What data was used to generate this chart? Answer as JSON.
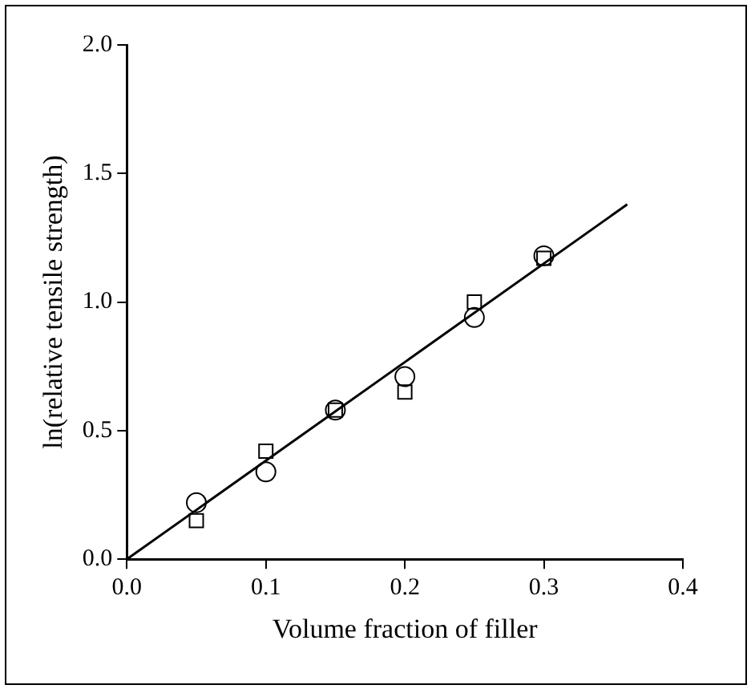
{
  "chart_data": {
    "type": "scatter",
    "xlabel": "Volume fraction of filler",
    "ylabel": "ln(relative tensile strength)",
    "xlim": [
      0,
      0.4
    ],
    "ylim": [
      0,
      2
    ],
    "xticks": [
      {
        "value": 0,
        "label": "0.0"
      },
      0.1,
      0.2,
      0.3,
      0.4
    ],
    "yticks": [
      {
        "value": 0,
        "label": "0.0"
      },
      0.5,
      {
        "value": 1,
        "label": "1.0"
      },
      1.5,
      {
        "value": 2,
        "label": "2.0"
      }
    ],
    "grid": false,
    "legend": false,
    "series": [
      {
        "color": "#000000",
        "marker": "circle",
        "x": [
          0.05,
          0.1,
          0.15,
          0.2,
          0.25,
          0.3
        ],
        "values": [
          0.22,
          0.34,
          0.58,
          0.71,
          0.94,
          1.18
        ]
      },
      {
        "color": "#000000",
        "marker": "square",
        "x": [
          0.05,
          0.1,
          0.15,
          0.2,
          0.25,
          0.3
        ],
        "values": [
          0.15,
          0.42,
          0.58,
          0.65,
          1.0,
          1.17
        ]
      },
      {
        "type": "line",
        "color": "#000000",
        "marker": "none",
        "line_style": "solid",
        "x": [
          0,
          0.36
        ],
        "values": [
          0,
          1.38
        ]
      }
    ]
  }
}
